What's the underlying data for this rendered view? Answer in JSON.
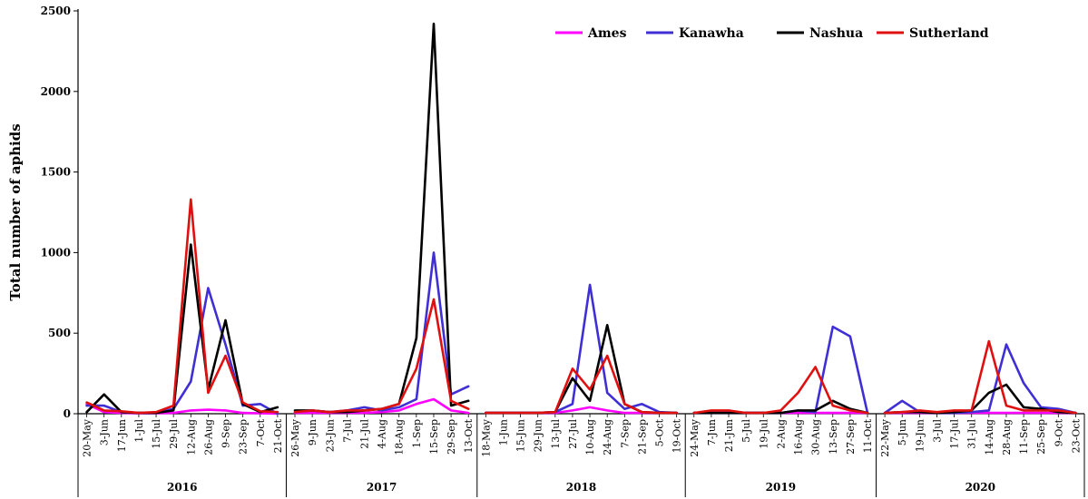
{
  "chart_data": {
    "type": "line",
    "title": "",
    "xlabel": "",
    "ylabel": "Total number of aphids",
    "ylim": [
      0,
      2500
    ],
    "yticks": [
      0,
      500,
      1000,
      1500,
      2000,
      2500
    ],
    "grid": false,
    "legend_position": "top-right",
    "years": [
      {
        "label": "2016",
        "dates": [
          "20-May",
          "3-Jun",
          "17-Jun",
          "1-Jul",
          "15-Jul",
          "29-Jul",
          "12-Aug",
          "26-Aug",
          "9-Sep",
          "23-Sep",
          "7-Oct",
          "21-Oct"
        ],
        "series": {
          "Ames": [
            60,
            10,
            5,
            3,
            3,
            5,
            20,
            25,
            20,
            5,
            3,
            0
          ],
          "Kanawha": [
            50,
            50,
            10,
            5,
            5,
            30,
            200,
            780,
            430,
            50,
            60,
            0
          ],
          "Nashua": [
            10,
            120,
            10,
            5,
            5,
            20,
            1050,
            150,
            580,
            60,
            10,
            40
          ],
          "Sutherland": [
            70,
            20,
            15,
            5,
            10,
            50,
            1330,
            130,
            360,
            70,
            15,
            10
          ]
        }
      },
      {
        "label": "2017",
        "dates": [
          "26-May",
          "9-Jun",
          "23-Jun",
          "7-Jul",
          "21-Jul",
          "4-Aug",
          "18-Aug",
          "1-Sep",
          "15-Sep",
          "29-Sep",
          "13-Oct"
        ],
        "series": {
          "Ames": [
            5,
            5,
            5,
            5,
            5,
            10,
            20,
            60,
            90,
            20,
            5
          ],
          "Kanawha": [
            10,
            20,
            10,
            20,
            40,
            20,
            40,
            90,
            1000,
            120,
            170
          ],
          "Nashua": [
            20,
            20,
            10,
            10,
            20,
            30,
            60,
            470,
            2420,
            50,
            80
          ],
          "Sutherland": [
            10,
            20,
            10,
            20,
            20,
            30,
            60,
            280,
            710,
            80,
            30
          ]
        }
      },
      {
        "label": "2018",
        "dates": [
          "18-May",
          "1-Jun",
          "15-Jun",
          "29-Jun",
          "13-Jul",
          "27-Jul",
          "10-Aug",
          "24-Aug",
          "7-Sep",
          "21-Sep",
          "5-Oct",
          "19-Oct"
        ],
        "series": {
          "Ames": [
            5,
            5,
            5,
            5,
            5,
            20,
            40,
            20,
            5,
            5,
            5,
            5
          ],
          "Kanawha": [
            5,
            5,
            5,
            5,
            10,
            60,
            800,
            130,
            30,
            60,
            10,
            5
          ],
          "Nashua": [
            5,
            5,
            5,
            5,
            10,
            220,
            80,
            550,
            60,
            10,
            5,
            5
          ],
          "Sutherland": [
            5,
            5,
            5,
            5,
            10,
            280,
            150,
            360,
            60,
            10,
            5,
            5
          ]
        }
      },
      {
        "label": "2019",
        "dates": [
          "24-May",
          "7-Jun",
          "21-Jun",
          "5-Jul",
          "19-Jul",
          "2-Aug",
          "16-Aug",
          "30-Aug",
          "13-Sep",
          "27-Sep",
          "11-Oct"
        ],
        "series": {
          "Ames": [
            5,
            5,
            5,
            5,
            5,
            5,
            5,
            5,
            5,
            5,
            5
          ],
          "Kanawha": [
            5,
            5,
            5,
            5,
            5,
            5,
            20,
            10,
            540,
            480,
            5
          ],
          "Nashua": [
            5,
            5,
            5,
            5,
            5,
            5,
            20,
            20,
            80,
            30,
            5
          ],
          "Sutherland": [
            5,
            20,
            20,
            5,
            5,
            20,
            130,
            290,
            50,
            20,
            5
          ]
        }
      },
      {
        "label": "2020",
        "dates": [
          "22-May",
          "5-Jun",
          "19-Jun",
          "3-Jul",
          "17-Jul",
          "31-Jul",
          "14-Aug",
          "28-Aug",
          "11-Sep",
          "25-Sep",
          "9-Oct",
          "23-Oct"
        ],
        "series": {
          "Ames": [
            5,
            5,
            5,
            5,
            5,
            5,
            5,
            5,
            5,
            5,
            5,
            5
          ],
          "Kanawha": [
            5,
            80,
            10,
            5,
            5,
            10,
            20,
            430,
            190,
            40,
            30,
            5
          ],
          "Nashua": [
            5,
            10,
            10,
            5,
            10,
            20,
            130,
            180,
            40,
            30,
            10,
            5
          ],
          "Sutherland": [
            5,
            10,
            20,
            10,
            20,
            20,
            450,
            50,
            20,
            20,
            20,
            5
          ]
        }
      }
    ],
    "series": [
      {
        "name": "Ames",
        "color": "#ff00ff"
      },
      {
        "name": "Kanawha",
        "color": "#3f2fd4"
      },
      {
        "name": "Nashua",
        "color": "#000000"
      },
      {
        "name": "Sutherland",
        "color": "#e01010"
      }
    ]
  }
}
